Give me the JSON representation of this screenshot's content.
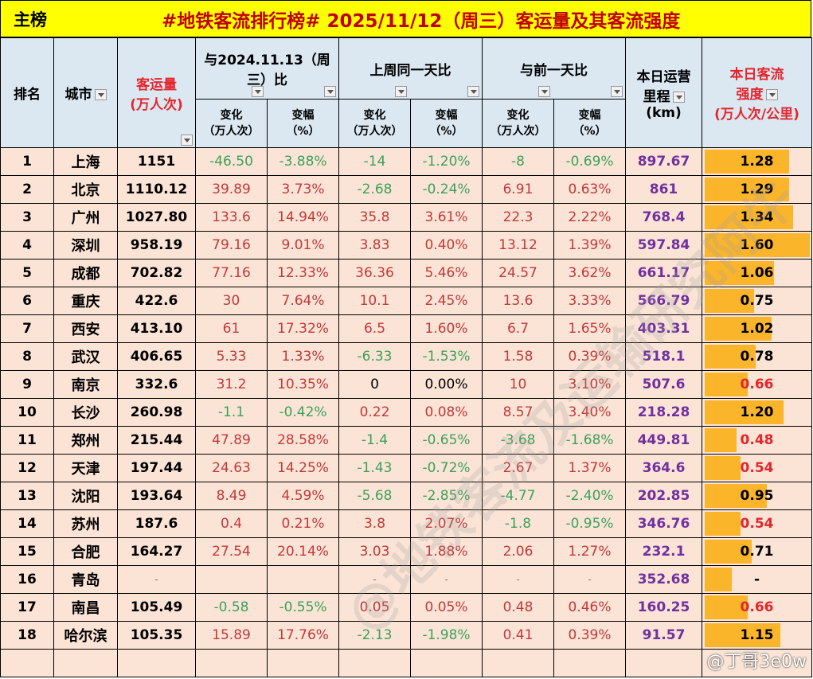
{
  "title": {
    "left": "主榜",
    "main": "#地铁客流排行榜# 2025/11/12（周三）客运量及其客流强度"
  },
  "headers": {
    "rank": "排名",
    "city": "城市",
    "volume": "客运量\n(万人次)",
    "volume_line1": "客运量",
    "volume_line2": "(万人次)",
    "yoy": "与2024.11.13（周三）比",
    "wow": "上周同一天比",
    "dod": "与前一天比",
    "mileage_line1": "本日运营",
    "mileage_line2": "里程",
    "mileage_line3": "(km)",
    "intensity_line1": "本日客流",
    "intensity_line2": "强度",
    "intensity_line3": "(万人次/公里)",
    "change_line1": "变化",
    "change_line2": "（万人次）",
    "pct_line1": "变幅",
    "pct_line2": "（%）"
  },
  "colors": {
    "title_bg": "#ffff00",
    "title_text": "#c00000",
    "header_bg": "#dbe8f2",
    "row_bg": "#fbe4d6",
    "positive": "#c0393b",
    "negative": "#3aa15c",
    "mileage": "#7030a0",
    "bar": "#fbb52b",
    "highlight_red": "#e3262c"
  },
  "rows": [
    {
      "rank": "1",
      "city": "上海",
      "volume": "1151",
      "yoy_chg": "-46.50",
      "yoy_pct": "-3.88%",
      "wow_chg": "-14",
      "wow_pct": "-1.20%",
      "dod_chg": "-8",
      "dod_pct": "-0.69%",
      "mileage": "897.67",
      "intensity": "1.28"
    },
    {
      "rank": "2",
      "city": "北京",
      "volume": "1110.12",
      "yoy_chg": "39.89",
      "yoy_pct": "3.73%",
      "wow_chg": "-2.68",
      "wow_pct": "-0.24%",
      "dod_chg": "6.91",
      "dod_pct": "0.63%",
      "mileage": "861",
      "intensity": "1.29"
    },
    {
      "rank": "3",
      "city": "广州",
      "volume": "1027.80",
      "yoy_chg": "133.6",
      "yoy_pct": "14.94%",
      "wow_chg": "35.8",
      "wow_pct": "3.61%",
      "dod_chg": "22.3",
      "dod_pct": "2.22%",
      "mileage": "768.4",
      "intensity": "1.34"
    },
    {
      "rank": "4",
      "city": "深圳",
      "volume": "958.19",
      "yoy_chg": "79.16",
      "yoy_pct": "9.01%",
      "wow_chg": "3.83",
      "wow_pct": "0.40%",
      "dod_chg": "13.12",
      "dod_pct": "1.39%",
      "mileage": "597.84",
      "intensity": "1.60"
    },
    {
      "rank": "5",
      "city": "成都",
      "volume": "702.82",
      "yoy_chg": "77.16",
      "yoy_pct": "12.33%",
      "wow_chg": "36.36",
      "wow_pct": "5.46%",
      "dod_chg": "24.57",
      "dod_pct": "3.62%",
      "mileage": "661.17",
      "intensity": "1.06"
    },
    {
      "rank": "6",
      "city": "重庆",
      "volume": "422.6",
      "yoy_chg": "30",
      "yoy_pct": "7.64%",
      "wow_chg": "10.1",
      "wow_pct": "2.45%",
      "dod_chg": "13.6",
      "dod_pct": "3.33%",
      "mileage": "566.79",
      "intensity": "0.75"
    },
    {
      "rank": "7",
      "city": "西安",
      "volume": "413.10",
      "yoy_chg": "61",
      "yoy_pct": "17.32%",
      "wow_chg": "6.5",
      "wow_pct": "1.60%",
      "dod_chg": "6.7",
      "dod_pct": "1.65%",
      "mileage": "403.31",
      "intensity": "1.02"
    },
    {
      "rank": "8",
      "city": "武汉",
      "volume": "406.65",
      "yoy_chg": "5.33",
      "yoy_pct": "1.33%",
      "wow_chg": "-6.33",
      "wow_pct": "-1.53%",
      "dod_chg": "1.58",
      "dod_pct": "0.39%",
      "mileage": "518.1",
      "intensity": "0.78"
    },
    {
      "rank": "9",
      "city": "南京",
      "volume": "332.6",
      "yoy_chg": "31.2",
      "yoy_pct": "10.35%",
      "wow_chg": "0",
      "wow_pct": "0.00%",
      "dod_chg": "10",
      "dod_pct": "3.10%",
      "mileage": "507.6",
      "intensity": "0.66"
    },
    {
      "rank": "10",
      "city": "长沙",
      "volume": "260.98",
      "yoy_chg": "-1.1",
      "yoy_pct": "-0.42%",
      "wow_chg": "0.22",
      "wow_pct": "0.08%",
      "dod_chg": "8.57",
      "dod_pct": "3.40%",
      "mileage": "218.28",
      "intensity": "1.20"
    },
    {
      "rank": "11",
      "city": "郑州",
      "volume": "215.44",
      "yoy_chg": "47.89",
      "yoy_pct": "28.58%",
      "wow_chg": "-1.4",
      "wow_pct": "-0.65%",
      "dod_chg": "-3.68",
      "dod_pct": "-1.68%",
      "mileage": "449.81",
      "intensity": "0.48"
    },
    {
      "rank": "12",
      "city": "天津",
      "volume": "197.44",
      "yoy_chg": "24.63",
      "yoy_pct": "14.25%",
      "wow_chg": "-1.43",
      "wow_pct": "-0.72%",
      "dod_chg": "2.67",
      "dod_pct": "1.37%",
      "mileage": "364.6",
      "intensity": "0.54"
    },
    {
      "rank": "13",
      "city": "沈阳",
      "volume": "193.64",
      "yoy_chg": "8.49",
      "yoy_pct": "4.59%",
      "wow_chg": "-5.68",
      "wow_pct": "-2.85%",
      "dod_chg": "-4.77",
      "dod_pct": "-2.40%",
      "mileage": "202.85",
      "intensity": "0.95"
    },
    {
      "rank": "14",
      "city": "苏州",
      "volume": "187.6",
      "yoy_chg": "0.4",
      "yoy_pct": "0.21%",
      "wow_chg": "3.8",
      "wow_pct": "2.07%",
      "dod_chg": "-1.8",
      "dod_pct": "-0.95%",
      "mileage": "346.76",
      "intensity": "0.54"
    },
    {
      "rank": "15",
      "city": "合肥",
      "volume": "164.27",
      "yoy_chg": "27.54",
      "yoy_pct": "20.14%",
      "wow_chg": "3.03",
      "wow_pct": "1.88%",
      "dod_chg": "2.06",
      "dod_pct": "1.27%",
      "mileage": "232.1",
      "intensity": "0.71"
    },
    {
      "rank": "16",
      "city": "青岛",
      "volume": "-",
      "yoy_chg": "",
      "yoy_pct": "",
      "wow_chg": "-",
      "wow_pct": "-",
      "dod_chg": "-",
      "dod_pct": "-",
      "mileage": "352.68",
      "intensity": "-"
    },
    {
      "rank": "17",
      "city": "南昌",
      "volume": "105.49",
      "yoy_chg": "-0.58",
      "yoy_pct": "-0.55%",
      "wow_chg": "0.05",
      "wow_pct": "0.05%",
      "dod_chg": "0.48",
      "dod_pct": "0.46%",
      "mileage": "160.25",
      "intensity": "0.66"
    },
    {
      "rank": "18",
      "city": "哈尔滨",
      "volume": "105.35",
      "yoy_chg": "15.89",
      "yoy_pct": "17.76%",
      "wow_chg": "-2.13",
      "wow_pct": "-1.98%",
      "dod_chg": "0.41",
      "dod_pct": "0.39%",
      "mileage": "91.57",
      "intensity": "1.15"
    }
  ],
  "watermark": {
    "handle": "@丁哥3e0w",
    "diagonal": "@地铁客流及运输研究阿牛"
  }
}
